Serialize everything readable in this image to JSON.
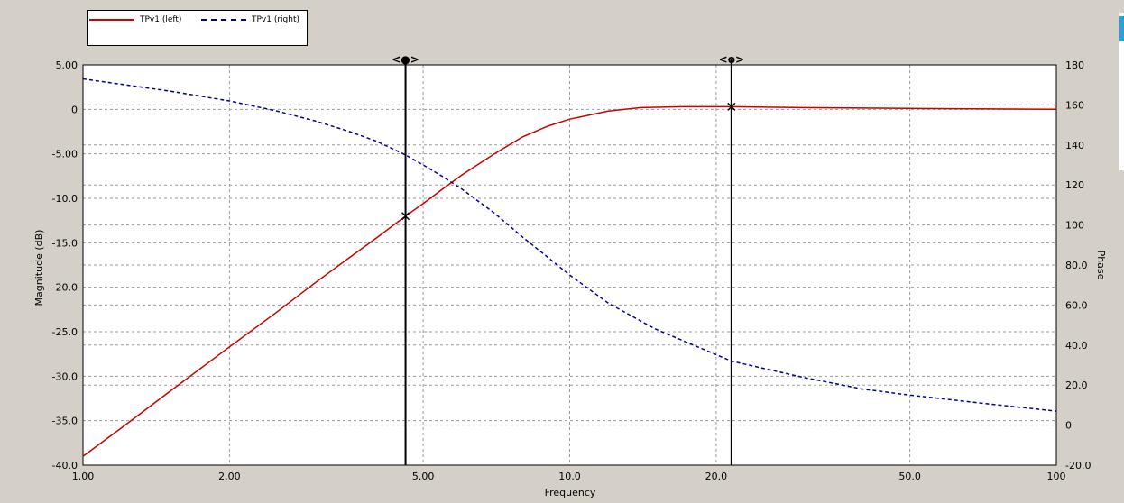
{
  "legend": {
    "items": [
      {
        "label": "TPv1 (left)",
        "color": "#cc0000",
        "style": "solid",
        "marker": "diamond"
      },
      {
        "label": "TPv1 (right)",
        "color": "#000099",
        "style": "dashed"
      }
    ]
  },
  "cursors": [
    {
      "label": "<●>",
      "x": 4.6,
      "y_left": -12.0
    },
    {
      "label": "<o>",
      "x": 21.5,
      "y_left": 0.3
    }
  ],
  "chart_data": {
    "type": "line",
    "xlabel": "Frequency",
    "ylabel_left": "Magnitude  (dB)",
    "ylabel_right": "Phase",
    "x_scale": "log",
    "xlim": [
      1,
      100
    ],
    "ylim_left": [
      -40,
      5
    ],
    "ylim_right": [
      -20,
      180
    ],
    "grid": true,
    "legend_position": "top-left",
    "x_ticks": [
      {
        "value": 1,
        "label": "1.00"
      },
      {
        "value": 2,
        "label": "2.00"
      },
      {
        "value": 5,
        "label": "5.00"
      },
      {
        "value": 10,
        "label": "10.0"
      },
      {
        "value": 20,
        "label": "20.0"
      },
      {
        "value": 50,
        "label": "50.0"
      },
      {
        "value": 100,
        "label": "100"
      }
    ],
    "y_left_ticks": [
      {
        "value": 5,
        "label": "5.00"
      },
      {
        "value": 0,
        "label": "0"
      },
      {
        "value": -5,
        "label": "-5.00"
      },
      {
        "value": -10,
        "label": "-10.0"
      },
      {
        "value": -15,
        "label": "-15.0"
      },
      {
        "value": -20,
        "label": "-20.0"
      },
      {
        "value": -25,
        "label": "-25.0"
      },
      {
        "value": -30,
        "label": "-30.0"
      },
      {
        "value": -35,
        "label": "-35.0"
      },
      {
        "value": -40,
        "label": "-40.0"
      }
    ],
    "y_right_ticks": [
      {
        "value": 180,
        "label": "180"
      },
      {
        "value": 160,
        "label": "160"
      },
      {
        "value": 140,
        "label": "140"
      },
      {
        "value": 120,
        "label": "120"
      },
      {
        "value": 100,
        "label": "100"
      },
      {
        "value": 80,
        "label": "80.0"
      },
      {
        "value": 60,
        "label": "60.0"
      },
      {
        "value": 40,
        "label": "40.0"
      },
      {
        "value": 20,
        "label": "20.0"
      },
      {
        "value": 0,
        "label": "0"
      },
      {
        "value": -20,
        "label": "-20.0"
      }
    ],
    "series": [
      {
        "name": "TPv1 (left)",
        "axis": "left",
        "color": "#cc0000",
        "x": [
          1.0,
          1.2,
          1.5,
          2.0,
          2.5,
          3.0,
          3.5,
          4.0,
          4.6,
          5.0,
          5.5,
          6.0,
          7.0,
          8.0,
          9.0,
          10.0,
          12.0,
          14.0,
          17.0,
          21.5,
          30.0,
          50.0,
          100.0
        ],
        "y": [
          -39.0,
          -35.8,
          -31.8,
          -26.7,
          -22.8,
          -19.5,
          -16.8,
          -14.5,
          -12.0,
          -10.6,
          -8.9,
          -7.4,
          -5.0,
          -3.1,
          -1.9,
          -1.1,
          -0.2,
          0.2,
          0.3,
          0.3,
          0.2,
          0.1,
          0.0
        ]
      },
      {
        "name": "TPv1 (right)",
        "axis": "right",
        "color": "#000099",
        "x": [
          1.0,
          1.5,
          2.0,
          2.5,
          3.0,
          3.5,
          4.0,
          4.6,
          5.0,
          5.5,
          6.0,
          7.0,
          8.0,
          9.0,
          10.0,
          12.0,
          15.0,
          21.5,
          30.0,
          40.0,
          50.0,
          70.0,
          100.0
        ],
        "y": [
          173,
          167,
          162,
          157,
          152,
          147,
          142,
          135,
          130,
          124,
          118,
          106,
          94,
          84,
          75,
          61,
          48,
          32,
          24,
          18,
          15,
          11,
          7
        ]
      }
    ]
  }
}
